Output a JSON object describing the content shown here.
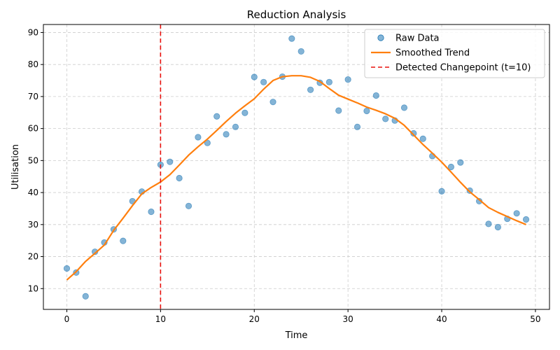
{
  "chart_data": {
    "type": "scatter",
    "title": "Reduction Analysis",
    "xlabel": "Time",
    "ylabel": "Utilisation",
    "xlim": [
      -2.5,
      51.5
    ],
    "ylim": [
      3.5,
      92.5
    ],
    "xticks": [
      0,
      10,
      20,
      30,
      40,
      50
    ],
    "yticks": [
      10,
      20,
      30,
      40,
      50,
      60,
      70,
      80,
      90
    ],
    "grid": true,
    "legend_position": "top-right",
    "series": [
      {
        "name": "Raw Data",
        "kind": "markers",
        "color": "#1f77b4",
        "x": [
          0,
          1,
          2,
          3,
          4,
          5,
          6,
          7,
          8,
          9,
          10,
          11,
          12,
          13,
          14,
          15,
          16,
          17,
          18,
          19,
          20,
          21,
          22,
          23,
          24,
          25,
          26,
          27,
          28,
          29,
          30,
          31,
          32,
          33,
          34,
          35,
          36,
          37,
          38,
          39,
          40,
          41,
          42,
          43,
          44,
          45,
          46,
          47,
          48,
          49
        ],
        "y": [
          16.3,
          15.0,
          7.6,
          21.5,
          24.4,
          28.5,
          24.9,
          37.3,
          40.3,
          34.0,
          48.7,
          49.6,
          44.5,
          35.8,
          57.3,
          55.5,
          63.8,
          58.2,
          60.5,
          64.9,
          76.1,
          74.5,
          68.3,
          76.2,
          88.1,
          84.1,
          72.1,
          74.3,
          74.5,
          65.6,
          75.3,
          60.5,
          65.5,
          70.3,
          63.0,
          62.5,
          66.5,
          58.5,
          56.8,
          51.4,
          40.4,
          48.0,
          49.4,
          40.6,
          37.3,
          30.2,
          29.2,
          31.8,
          33.5,
          31.6
        ]
      },
      {
        "name": "Smoothed Trend",
        "kind": "line",
        "color": "#ff7f0e",
        "x": [
          0,
          1,
          2,
          3,
          4,
          5,
          6,
          7,
          8,
          9,
          10,
          11,
          12,
          13,
          14,
          15,
          16,
          17,
          18,
          19,
          20,
          21,
          22,
          23,
          24,
          25,
          26,
          27,
          28,
          29,
          30,
          31,
          32,
          33,
          34,
          35,
          36,
          37,
          38,
          39,
          40,
          41,
          42,
          43,
          44,
          45,
          46,
          47,
          48,
          49
        ],
        "y": [
          12.7,
          15.3,
          18.5,
          21.0,
          23.6,
          28.2,
          32.0,
          35.9,
          39.6,
          41.6,
          43.3,
          45.6,
          48.6,
          51.7,
          54.3,
          56.7,
          59.4,
          62.2,
          64.8,
          67.1,
          69.3,
          72.3,
          75.0,
          76.2,
          76.5,
          76.5,
          76.0,
          74.7,
          72.5,
          70.4,
          69.2,
          68.0,
          66.7,
          65.7,
          64.6,
          63.2,
          61.0,
          58.0,
          55.0,
          52.3,
          49.5,
          46.4,
          43.2,
          40.2,
          37.8,
          35.3,
          33.8,
          32.5,
          31.2,
          30.0
        ]
      },
      {
        "name": "Detected Changepoint (t=10)",
        "kind": "vline",
        "color": "#e8110d",
        "x": 10
      }
    ]
  }
}
